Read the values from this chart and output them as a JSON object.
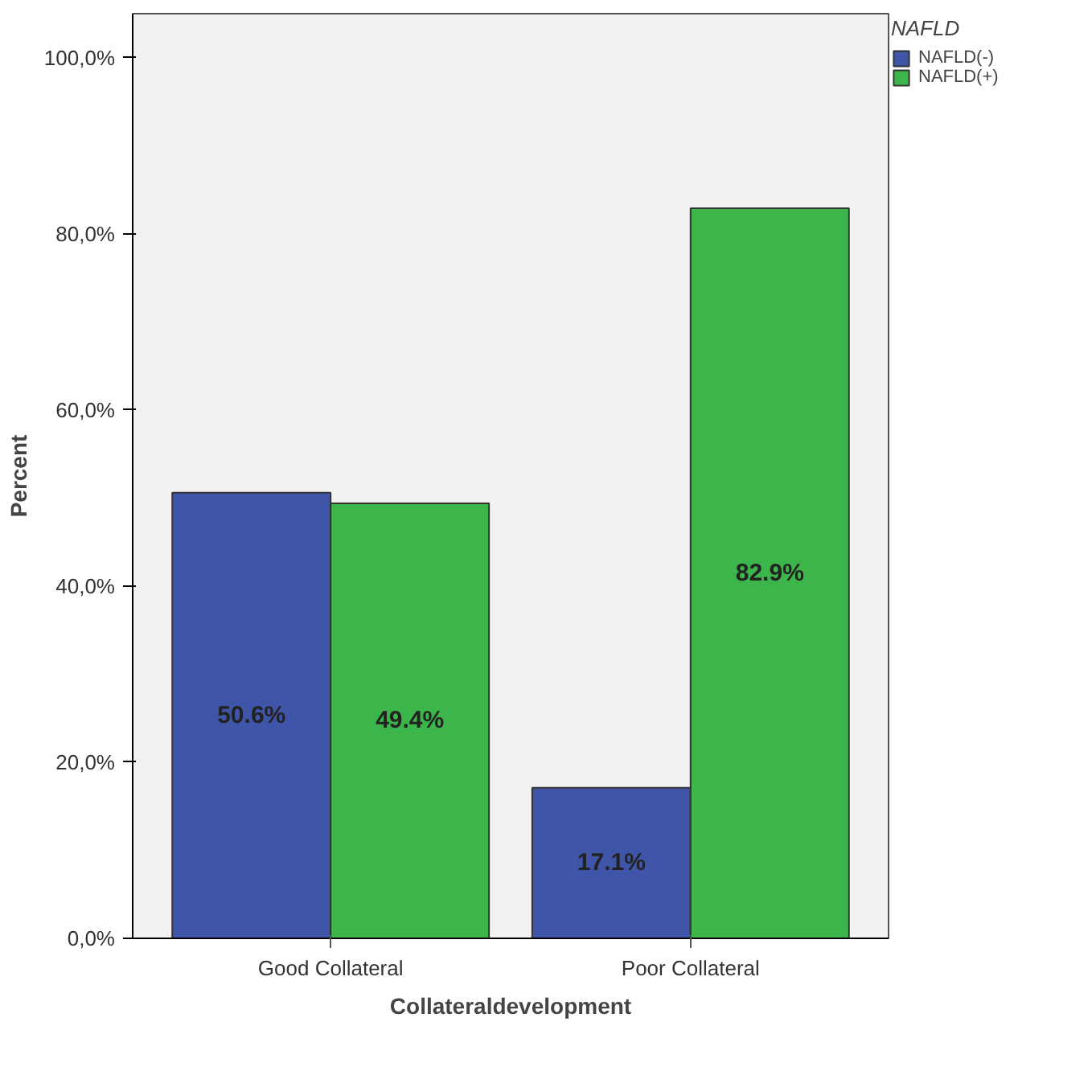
{
  "chart_data": {
    "type": "bar",
    "xlabel": "Collateraldevelopment",
    "ylabel": "Percent",
    "legend_title": "NAFLD",
    "categories": [
      "Good Collateral",
      "Poor Collateral"
    ],
    "series": [
      {
        "name": "NAFLD(-)",
        "color": "#3e55a8",
        "values": [
          50.6,
          17.1
        ],
        "value_labels": [
          "50.6%",
          "17.1%"
        ]
      },
      {
        "name": "NAFLD(+)",
        "color": "#3cb64a",
        "values": [
          49.4,
          82.9
        ],
        "value_labels": [
          "49.4%",
          "82.9%"
        ]
      }
    ],
    "ylim": [
      0,
      105
    ],
    "yticks": [
      {
        "value": 0,
        "label": "0,0%"
      },
      {
        "value": 20,
        "label": "20,0%"
      },
      {
        "value": 40,
        "label": "40,0%"
      },
      {
        "value": 60,
        "label": "60,0%"
      },
      {
        "value": 80,
        "label": "80,0%"
      },
      {
        "value": 100,
        "label": "100,0%"
      }
    ],
    "grid": false,
    "legend": "top right"
  }
}
